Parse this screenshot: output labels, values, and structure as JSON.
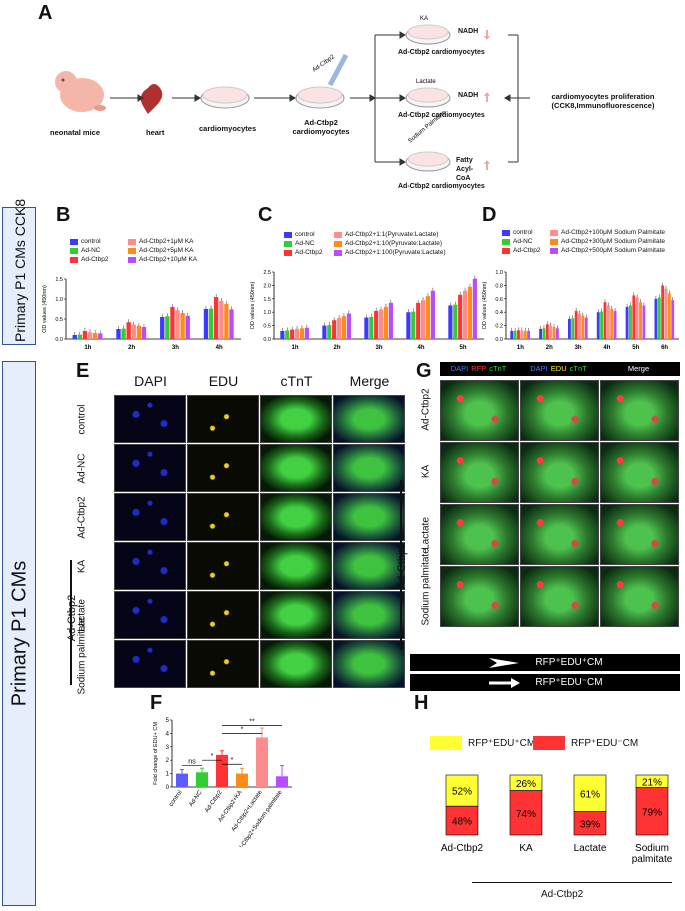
{
  "panelA": {
    "label": "A",
    "nodes": [
      "neonatal mice",
      "heart",
      "cardiomyocytes",
      "Ad-Ctbp2\ncardiomyocytes"
    ],
    "dish_label": "Ad-Ctbp2",
    "branches": [
      {
        "dish": "KA",
        "metabolite": "NADH",
        "caption": "Ad-Ctbp2 cardiomyocytes"
      },
      {
        "dish": "Lactate",
        "metabolite": "NADH",
        "caption": "Ad-Ctbp2 cardiomyocytes"
      },
      {
        "dish": "Sodium Palmitate",
        "metabolite": "Fatty Acyl-CoA",
        "caption": "Ad-Ctbp2 cardiomyocytes"
      }
    ],
    "outcome": "cardiomyocytes proliferation (CCK8,Immunofluorescence)",
    "colors": {
      "arrow_down": "#f4a6a6",
      "arrow_up": "#f4a6a6",
      "tissue": "#c0392b"
    }
  },
  "side1": {
    "text": "Primary P1 CMs CCK8"
  },
  "side2": {
    "text": "Primary P1 CMs"
  },
  "panelB": {
    "label": "B",
    "legend": [
      "control",
      "Ad-NC",
      "Ad-Ctbp2",
      "Ad-Ctbp2+1μM KA",
      "Ad-Ctbp2+5μM KA",
      "Ad-Ctbp2+10μM KA"
    ],
    "sig": [
      "*",
      "***",
      "***",
      "*",
      "***",
      "***",
      "***",
      "***"
    ]
  },
  "panelC": {
    "label": "C",
    "legend": [
      "control",
      "Ad-NC",
      "Ad-Ctbp2",
      "Ad-Ctbp2+1:1(Pyruvate:Lactate)",
      "Ad-Ctbp2+1:10(Pyruvate:Lactate)",
      "Ad-Ctbp2+1:100(Pyruvate:Lactate)"
    ]
  },
  "panelD": {
    "label": "D",
    "legend": [
      "control",
      "Ad-NC",
      "Ad-Ctbp2",
      "Ad-Ctbp2+100μM Sodium Palmitate",
      "Ad-Ctbp2+300μM Sodium Palmitate",
      "Ad-Ctbp2+500μM Sodium Palmitate"
    ]
  },
  "chart_data": [
    {
      "type": "bar",
      "panel": "B",
      "ylabel": "OD values (450nm)",
      "ylim": [
        0,
        1.5
      ],
      "yticks": [
        "0.0",
        "0.5",
        "1.0",
        "1.5"
      ],
      "categories": [
        "1h",
        "2h",
        "3h",
        "4h"
      ],
      "series": [
        {
          "name": "control",
          "color": "#3b3bff",
          "values": [
            0.1,
            0.25,
            0.55,
            0.75
          ]
        },
        {
          "name": "Ad-NC",
          "color": "#33cc33",
          "values": [
            0.11,
            0.26,
            0.57,
            0.76
          ]
        },
        {
          "name": "Ad-Ctbp2",
          "color": "#ff3333",
          "values": [
            0.2,
            0.42,
            0.8,
            1.05
          ]
        },
        {
          "name": "Ad-Ctbp2+1μM KA",
          "color": "#ff8c8c",
          "values": [
            0.17,
            0.36,
            0.72,
            0.95
          ]
        },
        {
          "name": "Ad-Ctbp2+5μM KA",
          "color": "#ff8c1a",
          "values": [
            0.15,
            0.33,
            0.65,
            0.88
          ]
        },
        {
          "name": "Ad-Ctbp2+10μM KA",
          "color": "#b84dff",
          "values": [
            0.14,
            0.3,
            0.58,
            0.74
          ]
        }
      ]
    },
    {
      "type": "bar",
      "panel": "C",
      "ylabel": "OD values (450nm)",
      "ylim": [
        0,
        2.5
      ],
      "yticks": [
        "0.0",
        "0.5",
        "1.0",
        "1.5",
        "2.0",
        "2.5"
      ],
      "categories": [
        "1h",
        "2h",
        "3h",
        "4h",
        "5h"
      ],
      "series": [
        {
          "name": "control",
          "color": "#3b3bff",
          "values": [
            0.3,
            0.5,
            0.8,
            1.0,
            1.25
          ]
        },
        {
          "name": "Ad-NC",
          "color": "#33cc33",
          "values": [
            0.32,
            0.52,
            0.82,
            1.02,
            1.28
          ]
        },
        {
          "name": "Ad-Ctbp2",
          "color": "#ff3333",
          "values": [
            0.35,
            0.7,
            1.05,
            1.35,
            1.65
          ]
        },
        {
          "name": "Ad-Ctbp2+1:1(Pyruvate:Lactate)",
          "color": "#ff8c8c",
          "values": [
            0.38,
            0.78,
            1.1,
            1.45,
            1.8
          ]
        },
        {
          "name": "Ad-Ctbp2+1:10(Pyruvate:Lactate)",
          "color": "#ff8c1a",
          "values": [
            0.4,
            0.85,
            1.2,
            1.6,
            1.95
          ]
        },
        {
          "name": "Ad-Ctbp2+1:100(Pyruvate:Lactate)",
          "color": "#b84dff",
          "values": [
            0.42,
            0.95,
            1.35,
            1.8,
            2.25
          ]
        }
      ]
    },
    {
      "type": "bar",
      "panel": "D",
      "ylabel": "OD values (450nm)",
      "ylim": [
        0,
        1.0
      ],
      "yticks": [
        "0.0",
        "0.2",
        "0.4",
        "0.6",
        "0.8",
        "1.0"
      ],
      "categories": [
        "1h",
        "2h",
        "3h",
        "4h",
        "5h",
        "6h"
      ],
      "series": [
        {
          "name": "control",
          "color": "#3b3bff",
          "values": [
            0.12,
            0.15,
            0.3,
            0.4,
            0.48,
            0.6
          ]
        },
        {
          "name": "Ad-NC",
          "color": "#33cc33",
          "values": [
            0.12,
            0.16,
            0.31,
            0.41,
            0.5,
            0.62
          ]
        },
        {
          "name": "Ad-Ctbp2",
          "color": "#ff3333",
          "values": [
            0.13,
            0.22,
            0.42,
            0.55,
            0.65,
            0.8
          ]
        },
        {
          "name": "Ad-Ctbp2+100μM Sodium Palmitate",
          "color": "#ff8c8c",
          "values": [
            0.13,
            0.2,
            0.38,
            0.5,
            0.62,
            0.75
          ]
        },
        {
          "name": "Ad-Ctbp2+300μM Sodium Palmitate",
          "color": "#ff8c1a",
          "values": [
            0.12,
            0.18,
            0.35,
            0.45,
            0.55,
            0.68
          ]
        },
        {
          "name": "Ad-Ctbp2+500μM Sodium Palmitate",
          "color": "#b84dff",
          "values": [
            0.12,
            0.16,
            0.32,
            0.42,
            0.5,
            0.58
          ]
        }
      ]
    },
    {
      "type": "bar",
      "panel": "F",
      "ylabel": "Fold change of EDU+ CM",
      "ylim": [
        0,
        5
      ],
      "yticks": [
        "0",
        "1",
        "2",
        "3",
        "4",
        "5"
      ],
      "categories": [
        "control",
        "Ad-NC",
        "Ad-Ctbp2",
        "Ad-Ctbp2+KA",
        "Ad-Ctbp2+Lactate",
        "Ad-Ctbp2+Sodium palmitate"
      ],
      "colors": [
        "#5b5bff",
        "#33cc33",
        "#ff3333",
        "#ff8c1a",
        "#ff8c8c",
        "#b84dff"
      ],
      "values": [
        1.0,
        1.1,
        2.4,
        1.0,
        3.7,
        0.8
      ],
      "errors": [
        0.3,
        0.3,
        0.3,
        0.4,
        0.7,
        0.8
      ],
      "significance": [
        "ns",
        "*",
        "*",
        "*",
        "**"
      ]
    },
    {
      "type": "bar",
      "panel": "H",
      "stacked": true,
      "categories": [
        "Ad-Ctbp2",
        "KA",
        "Lactate",
        "Sodium palmitate"
      ],
      "series": [
        {
          "name": "RFP+EDU+CM",
          "color": "#ffff33",
          "values": [
            52,
            26,
            61,
            21
          ]
        },
        {
          "name": "RFP+EDU-CM",
          "color": "#ff3333",
          "values": [
            48,
            74,
            39,
            79
          ]
        }
      ],
      "labels_top": [
        "52%",
        "26%",
        "61%",
        "21%"
      ],
      "labels_bottom": [
        "48%",
        "74%",
        "39%",
        "79%"
      ]
    }
  ],
  "panelE": {
    "label": "E",
    "columns": [
      "DAPI",
      "EDU",
      "cTnT",
      "Merge"
    ],
    "rows": [
      "control",
      "Ad-NC",
      "Ad-Ctbp2",
      "KA",
      "Lactate",
      "Sodium palmitate"
    ],
    "group": "Ad-Ctbp2"
  },
  "panelG": {
    "label": "G",
    "headers": [
      {
        "parts": [
          "DAPI",
          "RFP",
          "cTnT"
        ],
        "colors": [
          "#4d7dff",
          "#ff3b3b",
          "#33dd33"
        ]
      },
      {
        "parts": [
          "DAPI",
          "EDU",
          "cTnT"
        ],
        "colors": [
          "#4d7dff",
          "#ffee33",
          "#33dd33"
        ]
      },
      {
        "parts": [
          "Merge"
        ],
        "colors": [
          "#ffffff"
        ]
      }
    ],
    "rows": [
      "Ad-Ctbp2",
      "KA",
      "Lactate",
      "Sodium palmitate"
    ],
    "group": "Ad-Ctbp2",
    "key1": "RFP⁺EDU⁺CM",
    "key2": "RFP⁺EDU⁻CM"
  },
  "panelF": {
    "label": "F"
  },
  "panelH": {
    "label": "H",
    "legend": [
      "RFP⁺EDU⁺CM",
      "RFP⁺EDU⁻CM"
    ],
    "group": "Ad-Ctbp2"
  }
}
